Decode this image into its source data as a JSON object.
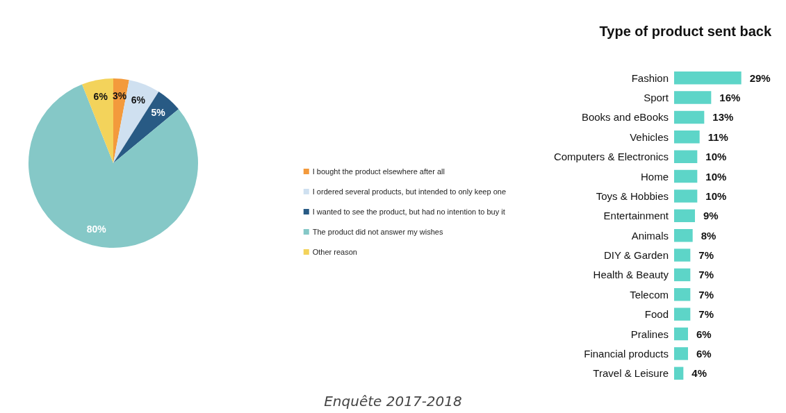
{
  "chart_data": [
    {
      "type": "pie",
      "categories": [
        "I bought the product elsewhere after all",
        "I ordered several products, but intended to only keep one",
        "I wanted to see the product, but had no intention to buy it",
        "The product did not answer my wishes",
        "Other reason"
      ],
      "values": [
        3,
        6,
        5,
        80,
        6
      ],
      "colors": [
        "#f39a3c",
        "#cfe0f0",
        "#285a84",
        "#85c8c7",
        "#f3d35b"
      ],
      "value_labels": [
        "3%",
        "6%",
        "5%",
        "80%",
        "6%"
      ],
      "legend": "right"
    },
    {
      "type": "bar",
      "orientation": "horizontal",
      "title": "Type of product sent back",
      "categories": [
        "Fashion",
        "Sport",
        "Books and eBooks",
        "Vehicles",
        "Computers & Electronics",
        "Home",
        "Toys & Hobbies",
        "Entertainment",
        "Animals",
        "DIY & Garden",
        "Health & Beauty",
        "Telecom",
        "Food",
        "Pralines",
        "Financial products",
        "Travel & Leisure"
      ],
      "values": [
        29,
        16,
        13,
        11,
        10,
        10,
        10,
        9,
        8,
        7,
        7,
        7,
        7,
        6,
        6,
        4
      ],
      "color": "#5dd5c8",
      "value_labels": [
        "29%",
        "16%",
        "13%",
        "11%",
        "10%",
        "10%",
        "10%",
        "9%",
        "8%",
        "7%",
        "7%",
        "7%",
        "7%",
        "6%",
        "6%",
        "4%"
      ],
      "grid": false,
      "annotations": [
        "Enquête 2017-2018"
      ]
    }
  ]
}
